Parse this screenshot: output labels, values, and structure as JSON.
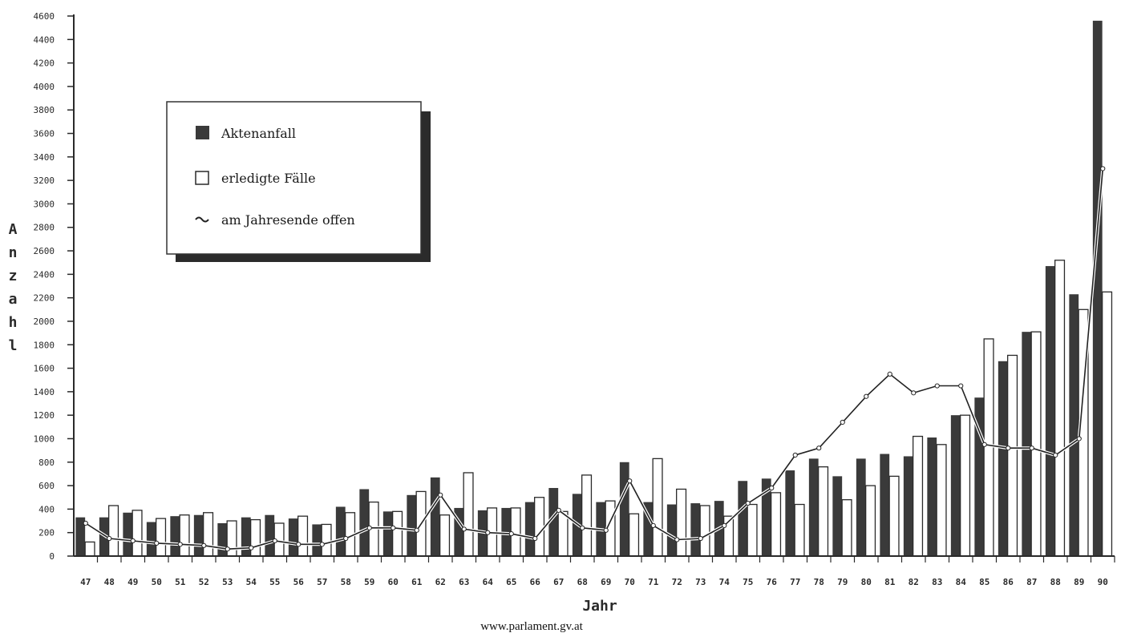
{
  "chart_data": {
    "type": "bar",
    "title": "",
    "xlabel": "Jahr",
    "ylabel": "Anzahl",
    "ylim": [
      0,
      4600
    ],
    "yticks": [
      0,
      200,
      400,
      600,
      800,
      1000,
      1200,
      1400,
      1600,
      1800,
      2000,
      2200,
      2400,
      2600,
      2800,
      3000,
      3200,
      3400,
      3600,
      3800,
      4000,
      4200,
      4400,
      4600
    ],
    "ytick_labels": [
      "0",
      "200",
      "400",
      "600",
      "800",
      "1000",
      "1200",
      "1400",
      "1600",
      "1800",
      "2000",
      "2200",
      "2400",
      "2600",
      "2800",
      "3000",
      "3200",
      "3400",
      "3600",
      "3800",
      "4000",
      "4200",
      "4400",
      "4600"
    ],
    "categories": [
      "47",
      "48",
      "49",
      "50",
      "51",
      "52",
      "53",
      "54",
      "55",
      "56",
      "57",
      "58",
      "59",
      "60",
      "61",
      "62",
      "63",
      "64",
      "65",
      "66",
      "67",
      "68",
      "69",
      "70",
      "71",
      "72",
      "73",
      "74",
      "75",
      "76",
      "77",
      "78",
      "79",
      "80",
      "81",
      "82",
      "83",
      "84",
      "85",
      "86",
      "87",
      "88",
      "89",
      "90"
    ],
    "legend_position": "top-left",
    "grid": false,
    "series": [
      {
        "name": "Aktenanfall",
        "kind": "bar",
        "color": "#3a3a3a",
        "values": [
          330,
          330,
          370,
          290,
          340,
          350,
          280,
          330,
          350,
          320,
          270,
          420,
          570,
          380,
          520,
          670,
          410,
          390,
          410,
          460,
          580,
          530,
          460,
          800,
          460,
          440,
          450,
          470,
          640,
          660,
          730,
          830,
          680,
          830,
          870,
          850,
          1010,
          1200,
          1350,
          1660,
          1910,
          2470,
          2230,
          4560
        ]
      },
      {
        "name": "erledigte Fälle",
        "kind": "bar",
        "color": "#ffffff",
        "values": [
          120,
          430,
          390,
          320,
          350,
          370,
          300,
          310,
          280,
          340,
          270,
          370,
          460,
          380,
          550,
          350,
          710,
          410,
          410,
          500,
          380,
          690,
          470,
          360,
          830,
          570,
          430,
          340,
          440,
          540,
          440,
          760,
          480,
          600,
          680,
          1020,
          950,
          1200,
          1850,
          1710,
          1910,
          2520,
          2100,
          2250
        ]
      },
      {
        "name": "am Jahresende offen",
        "kind": "line",
        "color": "#222222",
        "values": [
          280,
          150,
          130,
          110,
          100,
          90,
          60,
          70,
          130,
          100,
          100,
          150,
          240,
          240,
          220,
          520,
          230,
          200,
          190,
          150,
          390,
          240,
          220,
          640,
          260,
          140,
          150,
          260,
          450,
          580,
          860,
          920,
          1140,
          1360,
          1550,
          1390,
          1450,
          1450,
          950,
          920,
          920,
          860,
          1000,
          3300
        ]
      }
    ]
  },
  "footer": {
    "source": "www.parlament.gv.at"
  }
}
